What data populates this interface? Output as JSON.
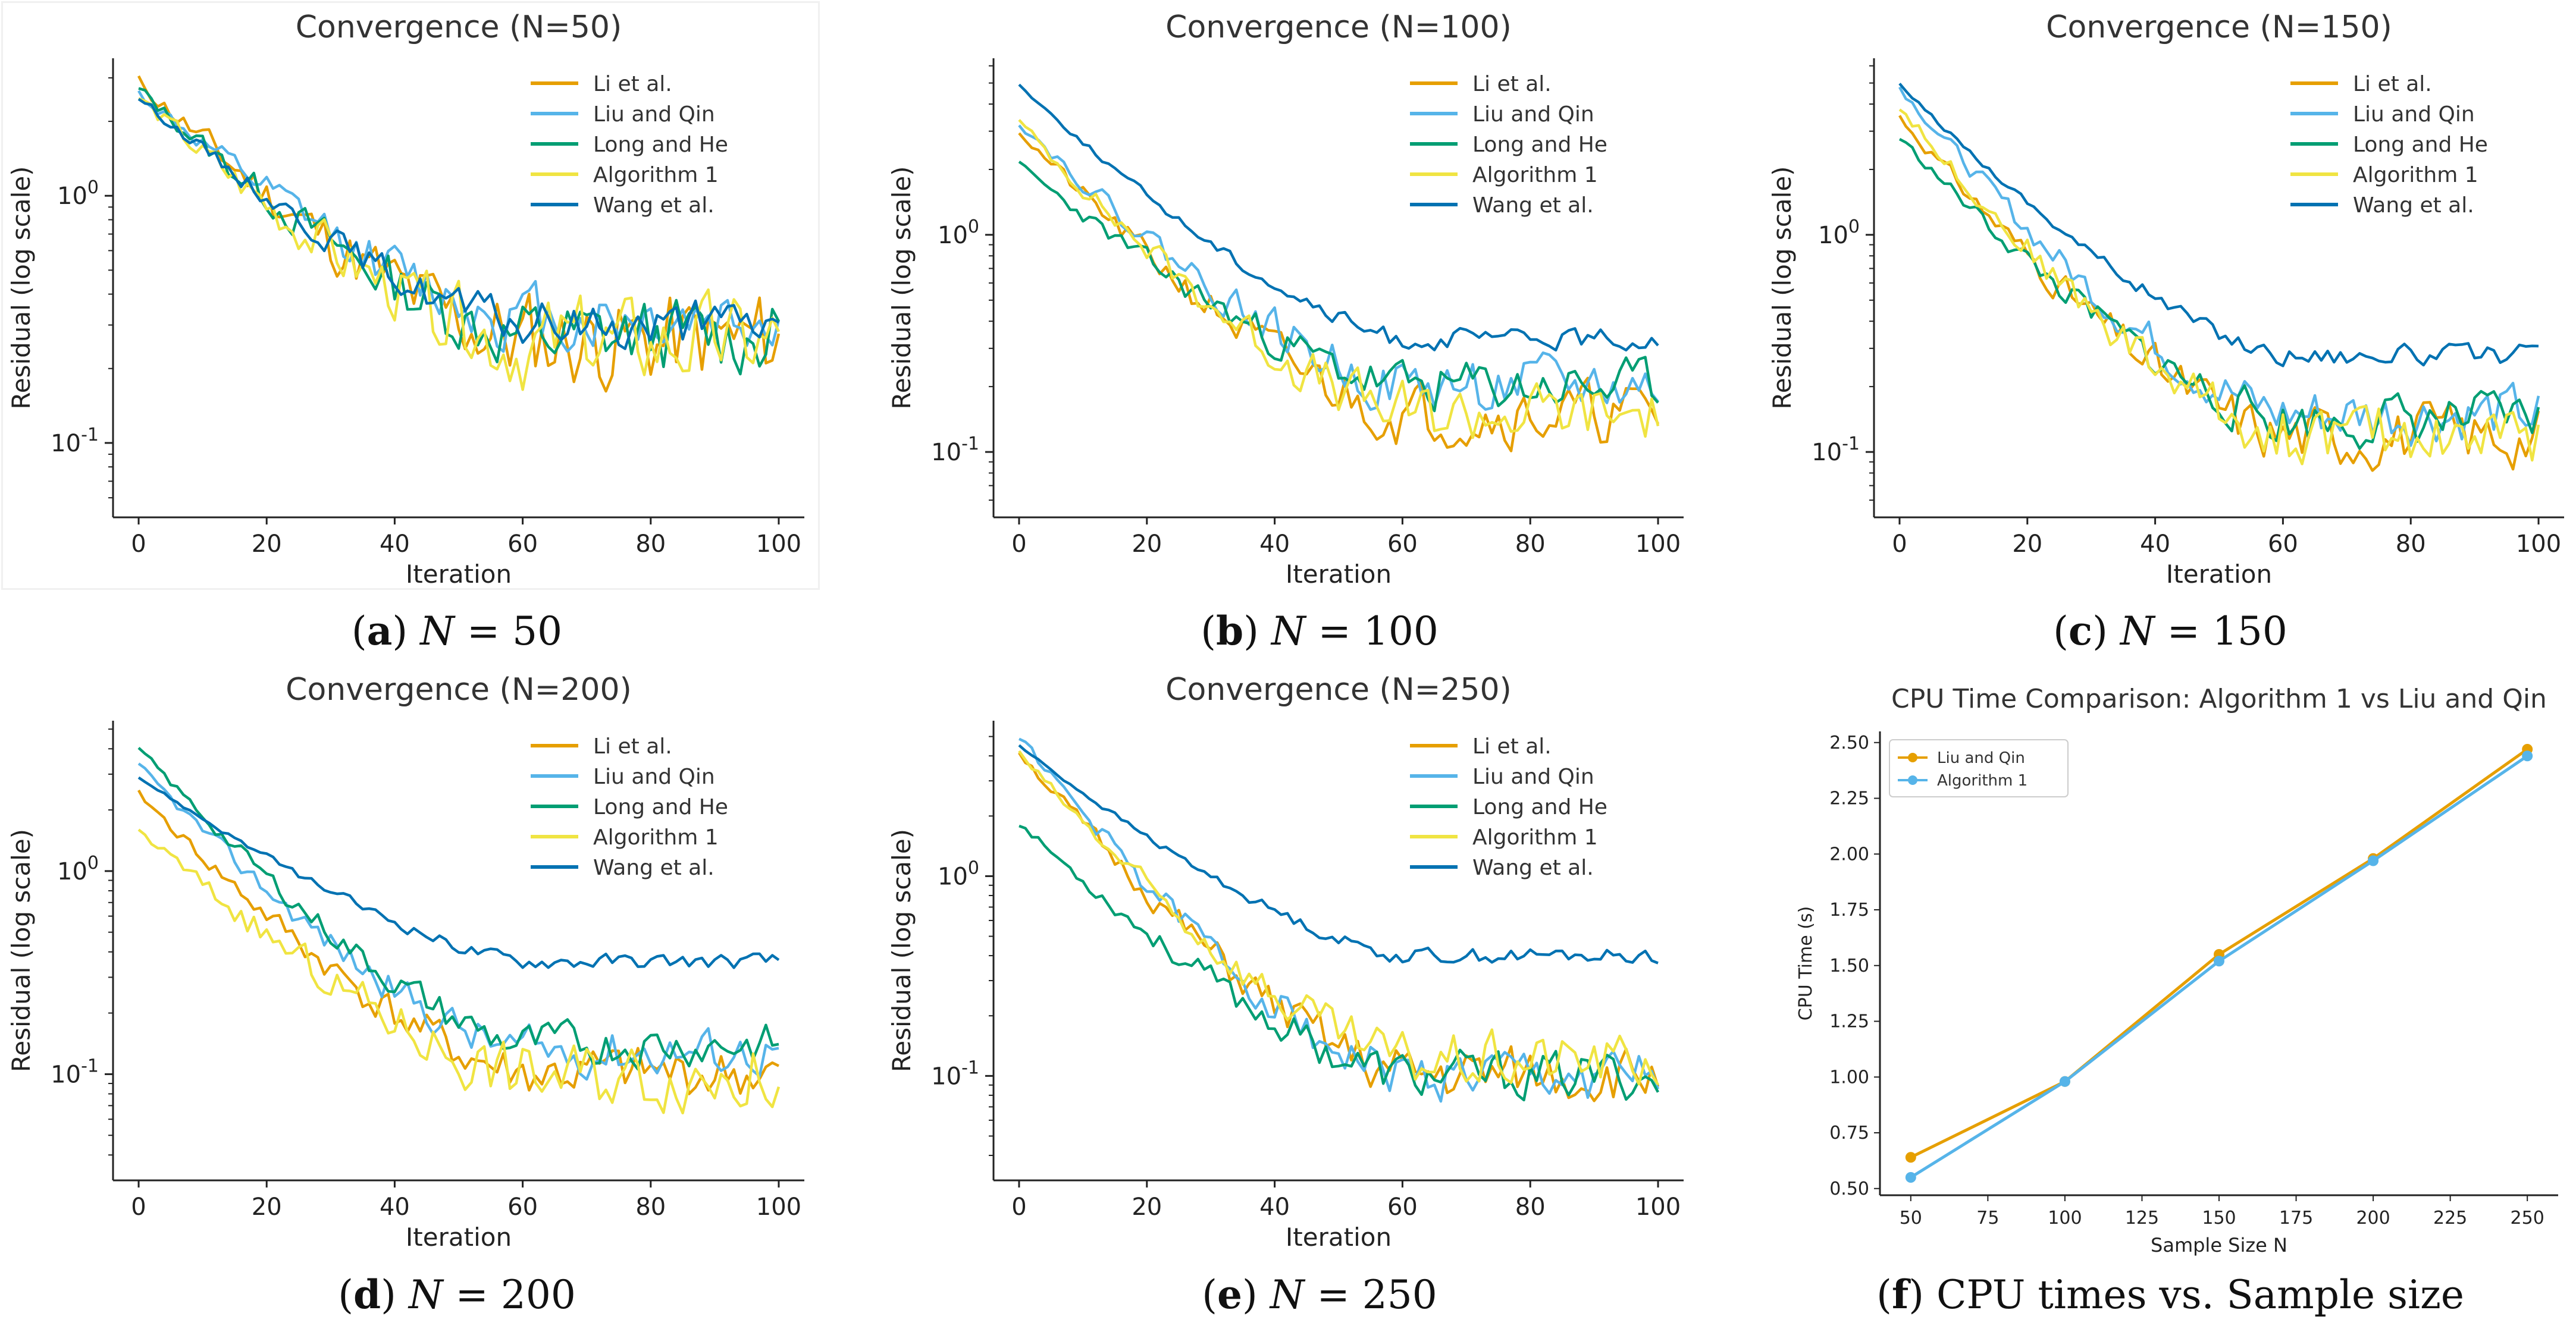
{
  "colors": {
    "Li et al.": "#E69F00",
    "Liu and Qin": "#56B4E9",
    "Long and He": "#009E73",
    "Algorithm 1": "#F0E442",
    "Wang et al.": "#0072B2"
  },
  "captions": [
    {
      "label": "a",
      "open": "(",
      "close": ")",
      "var": "N",
      "eq": " = 50"
    },
    {
      "label": "b",
      "open": "(",
      "close": ")",
      "var": "N",
      "eq": " = 100"
    },
    {
      "label": "c",
      "open": "(",
      "close": ")",
      "var": "N",
      "eq": " = 150"
    },
    {
      "label": "d",
      "open": "(",
      "close": ")",
      "var": "N",
      "eq": " = 200"
    },
    {
      "label": "e",
      "open": "(",
      "close": ")",
      "var": "N",
      "eq": " = 250"
    },
    {
      "label": "f",
      "open": "(",
      "close": ")",
      "text": " CPU times vs. Sample size"
    }
  ],
  "chart_data": [
    {
      "type": "line",
      "title": "Convergence (N=50)",
      "xlabel": "Iteration",
      "ylabel": "Residual (log scale)",
      "yscale": "log",
      "xlim": [
        -4,
        104
      ],
      "ylim": [
        0.05,
        3.6
      ],
      "xticks": [
        0,
        20,
        40,
        60,
        80,
        100
      ],
      "yticks": [
        {
          "value": 1,
          "label": "10^0"
        },
        {
          "value": 0.1,
          "label": "10^-1"
        }
      ],
      "legend": "top-right",
      "series": [
        {
          "name": "Li et al.",
          "start": 2.9,
          "end": 0.26,
          "noise": 0.42,
          "seed": 11
        },
        {
          "name": "Liu and Qin",
          "start": 2.6,
          "end": 0.32,
          "noise": 0.3,
          "seed": 12
        },
        {
          "name": "Long and He",
          "start": 2.7,
          "end": 0.27,
          "noise": 0.32,
          "seed": 13
        },
        {
          "name": "Algorithm 1",
          "start": 2.5,
          "end": 0.25,
          "noise": 0.38,
          "seed": 14
        },
        {
          "name": "Wang et al.",
          "start": 2.5,
          "end": 0.3,
          "noise": 0.2,
          "seed": 15
        }
      ]
    },
    {
      "type": "line",
      "title": "Convergence (N=100)",
      "xlabel": "Iteration",
      "ylabel": "Residual (log scale)",
      "yscale": "log",
      "xlim": [
        -4,
        104
      ],
      "ylim": [
        0.05,
        6.5
      ],
      "xticks": [
        0,
        20,
        40,
        60,
        80,
        100
      ],
      "yticks": [
        {
          "value": 1,
          "label": "10^0"
        },
        {
          "value": 0.1,
          "label": "10^-1"
        }
      ],
      "legend": "top-right",
      "series": [
        {
          "name": "Li et al.",
          "start": 3.0,
          "end": 0.15,
          "noise": 0.3,
          "seed": 21
        },
        {
          "name": "Liu and Qin",
          "start": 3.3,
          "end": 0.2,
          "noise": 0.28,
          "seed": 22
        },
        {
          "name": "Long and He",
          "start": 2.1,
          "end": 0.2,
          "noise": 0.25,
          "seed": 23
        },
        {
          "name": "Algorithm 1",
          "start": 3.3,
          "end": 0.15,
          "noise": 0.3,
          "seed": 24
        },
        {
          "name": "Wang et al.",
          "start": 4.9,
          "end": 0.33,
          "noise": 0.1,
          "seed": 25
        }
      ]
    },
    {
      "type": "line",
      "title": "Convergence (N=150)",
      "xlabel": "Iteration",
      "ylabel": "Residual (log scale)",
      "yscale": "log",
      "xlim": [
        -4,
        104
      ],
      "ylim": [
        0.05,
        6.5
      ],
      "xticks": [
        0,
        20,
        40,
        60,
        80,
        100
      ],
      "yticks": [
        {
          "value": 1,
          "label": "10^0"
        },
        {
          "value": 0.1,
          "label": "10^-1"
        }
      ],
      "legend": "top-right",
      "series": [
        {
          "name": "Li et al.",
          "start": 3.5,
          "end": 0.12,
          "noise": 0.3,
          "seed": 31
        },
        {
          "name": "Liu and Qin",
          "start": 4.8,
          "end": 0.15,
          "noise": 0.28,
          "seed": 32
        },
        {
          "name": "Long and He",
          "start": 2.8,
          "end": 0.14,
          "noise": 0.25,
          "seed": 33
        },
        {
          "name": "Algorithm 1",
          "start": 3.9,
          "end": 0.12,
          "noise": 0.3,
          "seed": 34
        },
        {
          "name": "Wang et al.",
          "start": 4.9,
          "end": 0.28,
          "noise": 0.1,
          "seed": 35
        }
      ]
    },
    {
      "type": "line",
      "title": "Convergence (N=200)",
      "xlabel": "Iteration",
      "ylabel": "Residual (log scale)",
      "yscale": "log",
      "xlim": [
        -4,
        104
      ],
      "ylim": [
        0.03,
        5.5
      ],
      "xticks": [
        0,
        20,
        40,
        60,
        80,
        100
      ],
      "yticks": [
        {
          "value": 1,
          "label": "10^0"
        },
        {
          "value": 0.1,
          "label": "10^-1"
        }
      ],
      "legend": "top-right",
      "series": [
        {
          "name": "Li et al.",
          "start": 2.4,
          "end": 0.1,
          "noise": 0.28,
          "seed": 41
        },
        {
          "name": "Liu and Qin",
          "start": 3.3,
          "end": 0.13,
          "noise": 0.25,
          "seed": 42
        },
        {
          "name": "Long and He",
          "start": 4.0,
          "end": 0.14,
          "noise": 0.22,
          "seed": 43
        },
        {
          "name": "Algorithm 1",
          "start": 1.6,
          "end": 0.1,
          "noise": 0.35,
          "seed": 44
        },
        {
          "name": "Wang et al.",
          "start": 2.9,
          "end": 0.36,
          "noise": 0.08,
          "seed": 45
        }
      ]
    },
    {
      "type": "line",
      "title": "Convergence (N=250)",
      "xlabel": "Iteration",
      "ylabel": "Residual (log scale)",
      "yscale": "log",
      "xlim": [
        -4,
        104
      ],
      "ylim": [
        0.03,
        6.0
      ],
      "xticks": [
        0,
        20,
        40,
        60,
        80,
        100
      ],
      "yticks": [
        {
          "value": 1,
          "label": "10^0"
        },
        {
          "value": 0.1,
          "label": "10^-1"
        }
      ],
      "legend": "top-right",
      "series": [
        {
          "name": "Li et al.",
          "start": 4.2,
          "end": 0.1,
          "noise": 0.3,
          "seed": 51
        },
        {
          "name": "Liu and Qin",
          "start": 5.0,
          "end": 0.1,
          "noise": 0.28,
          "seed": 52
        },
        {
          "name": "Long and He",
          "start": 1.85,
          "end": 0.1,
          "noise": 0.25,
          "seed": 53
        },
        {
          "name": "Algorithm 1",
          "start": 4.1,
          "end": 0.12,
          "noise": 0.3,
          "seed": 54
        },
        {
          "name": "Wang et al.",
          "start": 4.5,
          "end": 0.4,
          "noise": 0.08,
          "seed": 55
        }
      ]
    },
    {
      "type": "line",
      "title": "CPU Time Comparison: Algorithm 1 vs Liu and Qin",
      "xlabel": "Sample Size N",
      "ylabel": "CPU Time (s)",
      "xlim": [
        40,
        260
      ],
      "ylim": [
        0.47,
        2.55
      ],
      "xticks": [
        50,
        75,
        100,
        125,
        150,
        175,
        200,
        225,
        250
      ],
      "yticks": [
        0.5,
        0.75,
        1.0,
        1.25,
        1.5,
        1.75,
        2.0,
        2.25,
        2.5
      ],
      "ytick_labels": [
        "0.50",
        "0.75",
        "1.00",
        "1.25",
        "1.50",
        "1.75",
        "2.00",
        "2.25",
        "2.50"
      ],
      "legend": "top-left",
      "x": [
        50,
        100,
        150,
        200,
        250
      ],
      "series": [
        {
          "name": "Liu and Qin",
          "color": "#E69F00",
          "values": [
            0.64,
            0.98,
            1.55,
            1.98,
            2.47
          ]
        },
        {
          "name": "Algorithm 1",
          "color": "#56B4E9",
          "values": [
            0.55,
            0.98,
            1.52,
            1.97,
            2.44
          ]
        }
      ]
    }
  ]
}
